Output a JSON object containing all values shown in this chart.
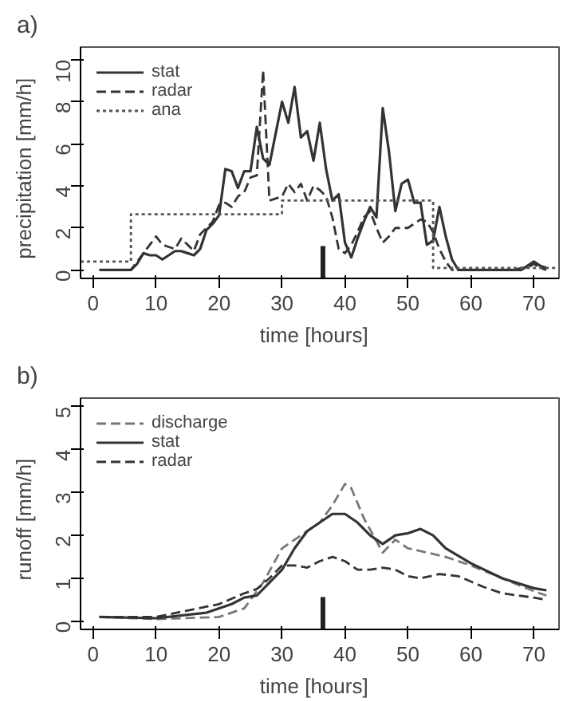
{
  "chart_data": [
    {
      "type": "line",
      "title": "a)",
      "xlabel": "time   [hours]",
      "ylabel": "precipitation   [mm/h]",
      "xlim": [
        -2,
        74
      ],
      "ylim": [
        -0.4,
        10.6
      ],
      "xticks": [
        0,
        10,
        20,
        30,
        40,
        50,
        60,
        70
      ],
      "yticks": [
        0,
        2,
        4,
        6,
        8,
        10
      ],
      "grid": false,
      "legend": "top left",
      "x": [
        1,
        2,
        3,
        4,
        5,
        6,
        7,
        8,
        9,
        10,
        11,
        12,
        13,
        14,
        15,
        16,
        17,
        18,
        19,
        20,
        21,
        22,
        23,
        24,
        25,
        26,
        27,
        28,
        29,
        30,
        31,
        32,
        33,
        34,
        35,
        36,
        37,
        38,
        39,
        40,
        41,
        42,
        43,
        44,
        45,
        46,
        47,
        48,
        49,
        50,
        51,
        52,
        53,
        54,
        55,
        56,
        57,
        58,
        59,
        60,
        61,
        62,
        63,
        64,
        65,
        66,
        67,
        68,
        69,
        70,
        71,
        72
      ],
      "series": [
        {
          "name": "stat",
          "color": "#333333",
          "line_style": "solid",
          "values": [
            0,
            0,
            0,
            0,
            0,
            0,
            0.3,
            0.8,
            0.7,
            0.7,
            0.5,
            0.7,
            0.9,
            0.9,
            0.8,
            0.7,
            1.0,
            1.9,
            2.2,
            2.6,
            4.8,
            4.7,
            3.9,
            4.7,
            4.7,
            6.8,
            5.3,
            5.0,
            6.5,
            8.0,
            7.0,
            8.7,
            6.3,
            6.6,
            5.2,
            7.0,
            4.8,
            3.3,
            3.6,
            1.3,
            0.6,
            1.5,
            2.3,
            3.0,
            2.5,
            7.7,
            5.6,
            2.8,
            4.1,
            4.3,
            3.2,
            3.2,
            1.2,
            1.4,
            3.0,
            1.6,
            0.5,
            0,
            0,
            0,
            0,
            0,
            0,
            0,
            0,
            0,
            0,
            0,
            0.2,
            0.4,
            0.2,
            0.1
          ]
        },
        {
          "name": "radar",
          "color": "#333333",
          "line_style": "dashed",
          "values": [
            0,
            0,
            0,
            0,
            0,
            0,
            0.4,
            0.8,
            1.2,
            1.6,
            1.2,
            1.1,
            1.0,
            1.5,
            1.2,
            0.9,
            1.7,
            2.0,
            2.3,
            3.1,
            3.2,
            3.0,
            3.5,
            3.7,
            4.4,
            4.5,
            9.5,
            3.3,
            3.4,
            3.5,
            4.1,
            3.7,
            4.1,
            3.3,
            4.0,
            3.8,
            3.5,
            2.5,
            1.0,
            0.8,
            1.2,
            1.8,
            2.5,
            2.8,
            2.0,
            1.3,
            1.6,
            2.0,
            2.0,
            2.0,
            2.2,
            2.4,
            2.3,
            1.8,
            1.0,
            0.4,
            0,
            0,
            0,
            0,
            0,
            0,
            0,
            0,
            0,
            0,
            0,
            0.1,
            0.1,
            0.3,
            0.1,
            0
          ]
        },
        {
          "name": "ana",
          "type": "step",
          "color": "#555555",
          "line_style": "dotted",
          "x": [
            -2,
            6,
            30,
            54,
            74
          ],
          "values": [
            0.4,
            2.65,
            3.3,
            0.1,
            0.1
          ]
        }
      ],
      "ref_lines": [
        {
          "axis": "x",
          "value": 36.5,
          "color": "#222222"
        }
      ]
    },
    {
      "type": "line",
      "title": "b)",
      "xlabel": "time   [hours]",
      "ylabel": "runoff   [mm/h]",
      "xlim": [
        -2,
        74
      ],
      "ylim": [
        -0.19,
        5.2
      ],
      "xticks": [
        0,
        10,
        20,
        30,
        40,
        50,
        60,
        70
      ],
      "yticks": [
        0,
        1,
        2,
        3,
        4,
        5
      ],
      "grid": false,
      "legend": "top left",
      "series": [
        {
          "name": "discharge",
          "color": "#777777",
          "line_style": "dashed",
          "x": [
            1,
            10,
            20,
            24,
            27,
            30,
            33,
            36,
            38,
            40,
            41,
            43,
            46,
            48,
            50,
            53,
            56,
            60,
            65,
            70,
            72
          ],
          "values": [
            0.1,
            0.05,
            0.1,
            0.3,
            0.9,
            1.7,
            2.0,
            2.3,
            2.7,
            3.2,
            3.1,
            2.4,
            1.6,
            1.9,
            1.7,
            1.6,
            1.5,
            1.3,
            1.0,
            0.7,
            0.6
          ]
        },
        {
          "name": "stat",
          "color": "#333333",
          "line_style": "solid",
          "x": [
            1,
            10,
            18,
            22,
            24,
            26,
            28,
            30,
            32,
            34,
            36,
            38,
            40,
            42,
            44,
            46,
            48,
            50,
            52,
            54,
            56,
            60,
            65,
            70,
            72
          ],
          "values": [
            0.1,
            0.07,
            0.2,
            0.4,
            0.55,
            0.6,
            0.9,
            1.2,
            1.7,
            2.1,
            2.3,
            2.5,
            2.5,
            2.3,
            2.0,
            1.8,
            2.0,
            2.05,
            2.15,
            2.0,
            1.7,
            1.35,
            1.0,
            0.77,
            0.72
          ]
        },
        {
          "name": "radar",
          "color": "#333333",
          "line_style": "dashed",
          "x": [
            1,
            10,
            15,
            20,
            24,
            26,
            28,
            30,
            32,
            34,
            36,
            38,
            40,
            42,
            44,
            46,
            48,
            50,
            52,
            55,
            58,
            62,
            65,
            70,
            72
          ],
          "values": [
            0.1,
            0.1,
            0.25,
            0.4,
            0.65,
            0.75,
            1.0,
            1.3,
            1.3,
            1.25,
            1.4,
            1.5,
            1.4,
            1.2,
            1.2,
            1.25,
            1.2,
            1.05,
            1.0,
            1.1,
            1.05,
            0.8,
            0.65,
            0.55,
            0.5
          ]
        }
      ],
      "ref_lines": [
        {
          "axis": "x",
          "value": 36.5,
          "color": "#222222"
        }
      ]
    }
  ]
}
